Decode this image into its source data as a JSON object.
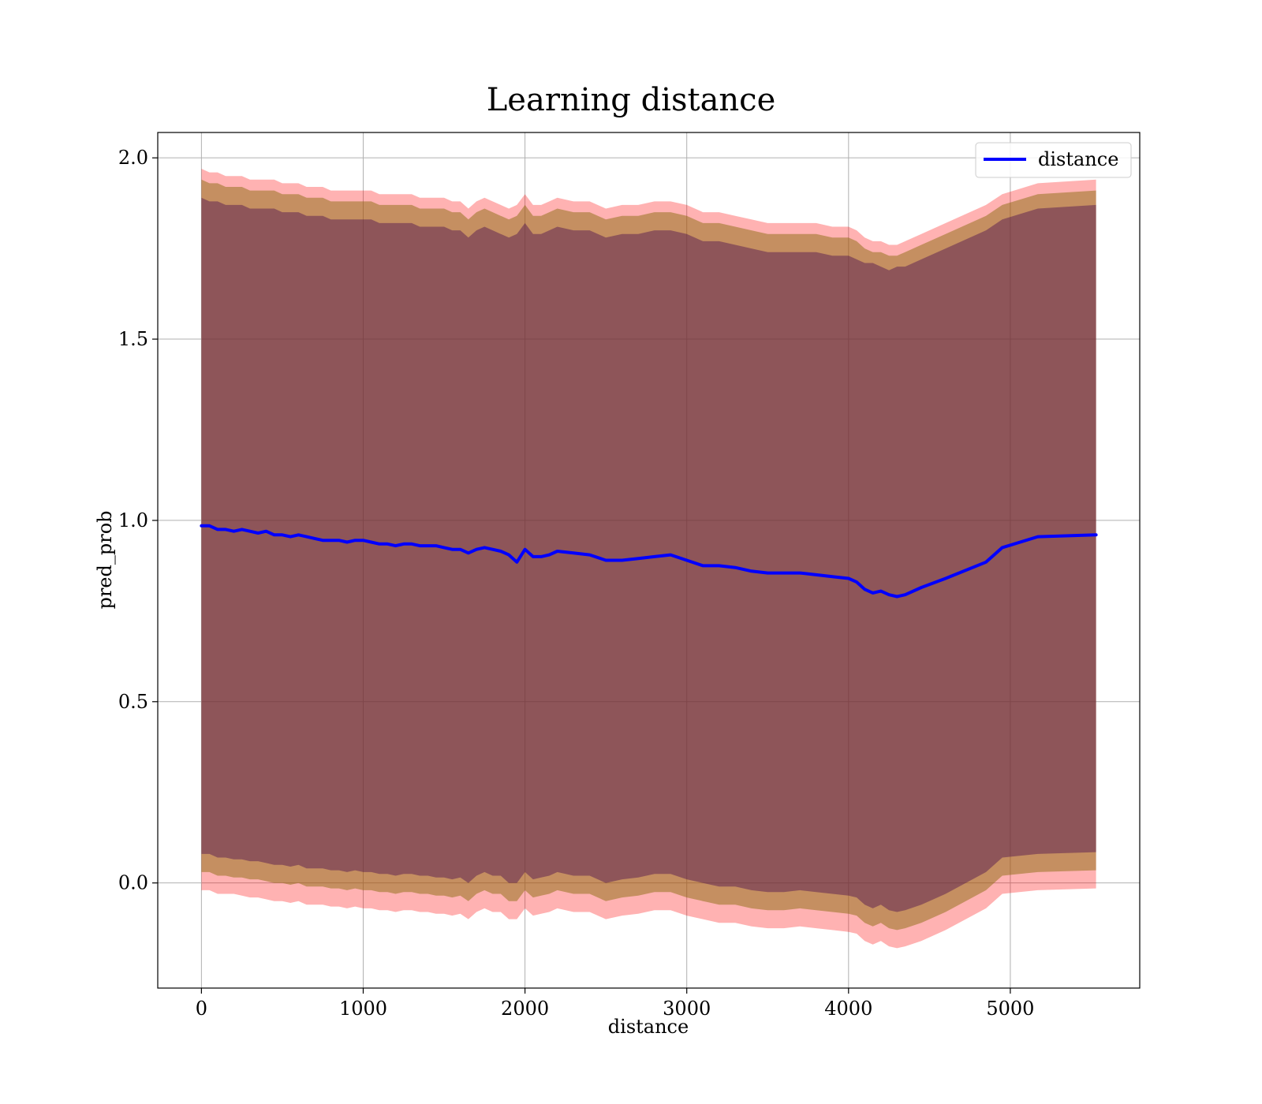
{
  "chart_data": {
    "type": "line",
    "title": "Learning distance",
    "xlabel": "distance",
    "ylabel": "pred_prob",
    "xlim": [
      -270,
      5800
    ],
    "ylim": [
      -0.29,
      2.07
    ],
    "xticks": [
      0,
      1000,
      2000,
      3000,
      4000,
      5000
    ],
    "xtick_labels": [
      "0",
      "1000",
      "2000",
      "3000",
      "4000",
      "5000"
    ],
    "yticks": [
      0.0,
      0.5,
      1.0,
      1.5,
      2.0
    ],
    "ytick_labels": [
      "0.0",
      "0.5",
      "1.0",
      "1.5",
      "2.0"
    ],
    "grid": true,
    "legend": {
      "placement": "top-right",
      "entries": [
        "distance"
      ]
    },
    "colors": {
      "line": "#0000ff",
      "outer_band": "#ff0000",
      "middle_band": "#8b6b10",
      "inner_band": "#4b0f4f",
      "grid": "#b0b0b0"
    },
    "series": [
      {
        "name": "distance",
        "x": [
          0,
          50,
          100,
          150,
          200,
          250,
          300,
          350,
          400,
          450,
          500,
          550,
          600,
          650,
          700,
          750,
          800,
          850,
          900,
          950,
          1000,
          1050,
          1100,
          1150,
          1200,
          1250,
          1300,
          1350,
          1400,
          1450,
          1500,
          1550,
          1600,
          1650,
          1700,
          1750,
          1800,
          1850,
          1900,
          1950,
          2000,
          2050,
          2100,
          2150,
          2200,
          2300,
          2400,
          2500,
          2600,
          2700,
          2800,
          2900,
          3000,
          3100,
          3200,
          3300,
          3400,
          3500,
          3600,
          3700,
          3800,
          3900,
          4000,
          4050,
          4100,
          4150,
          4200,
          4250,
          4300,
          4350,
          4450,
          4600,
          4850,
          4950,
          5170,
          5530
        ],
        "y": [
          0.985,
          0.985,
          0.975,
          0.975,
          0.97,
          0.975,
          0.97,
          0.965,
          0.97,
          0.96,
          0.96,
          0.955,
          0.96,
          0.955,
          0.95,
          0.945,
          0.945,
          0.945,
          0.94,
          0.945,
          0.945,
          0.94,
          0.935,
          0.935,
          0.93,
          0.935,
          0.935,
          0.93,
          0.93,
          0.93,
          0.925,
          0.92,
          0.92,
          0.91,
          0.92,
          0.925,
          0.92,
          0.915,
          0.905,
          0.885,
          0.92,
          0.9,
          0.9,
          0.905,
          0.915,
          0.91,
          0.905,
          0.89,
          0.89,
          0.895,
          0.9,
          0.905,
          0.89,
          0.875,
          0.875,
          0.87,
          0.86,
          0.855,
          0.855,
          0.855,
          0.85,
          0.845,
          0.84,
          0.83,
          0.81,
          0.8,
          0.805,
          0.795,
          0.79,
          0.795,
          0.815,
          0.84,
          0.885,
          0.925,
          0.955,
          0.96
        ],
        "band_outer": [
          [
            -0.02,
            1.97
          ],
          [
            -0.02,
            1.96
          ],
          [
            -0.03,
            1.96
          ],
          [
            -0.03,
            1.95
          ],
          [
            -0.03,
            1.95
          ],
          [
            -0.035,
            1.95
          ],
          [
            -0.04,
            1.94
          ],
          [
            -0.04,
            1.94
          ],
          [
            -0.045,
            1.94
          ],
          [
            -0.05,
            1.94
          ],
          [
            -0.05,
            1.93
          ],
          [
            -0.055,
            1.93
          ],
          [
            -0.05,
            1.93
          ],
          [
            -0.06,
            1.92
          ],
          [
            -0.06,
            1.92
          ],
          [
            -0.06,
            1.92
          ],
          [
            -0.065,
            1.91
          ],
          [
            -0.065,
            1.91
          ],
          [
            -0.07,
            1.91
          ],
          [
            -0.065,
            1.91
          ],
          [
            -0.07,
            1.91
          ],
          [
            -0.07,
            1.91
          ],
          [
            -0.075,
            1.9
          ],
          [
            -0.075,
            1.9
          ],
          [
            -0.08,
            1.9
          ],
          [
            -0.075,
            1.9
          ],
          [
            -0.075,
            1.9
          ],
          [
            -0.08,
            1.89
          ],
          [
            -0.08,
            1.89
          ],
          [
            -0.085,
            1.89
          ],
          [
            -0.085,
            1.89
          ],
          [
            -0.09,
            1.88
          ],
          [
            -0.085,
            1.88
          ],
          [
            -0.1,
            1.86
          ],
          [
            -0.08,
            1.88
          ],
          [
            -0.07,
            1.89
          ],
          [
            -0.08,
            1.88
          ],
          [
            -0.08,
            1.87
          ],
          [
            -0.1,
            1.86
          ],
          [
            -0.1,
            1.87
          ],
          [
            -0.07,
            1.9
          ],
          [
            -0.09,
            1.87
          ],
          [
            -0.085,
            1.87
          ],
          [
            -0.08,
            1.88
          ],
          [
            -0.07,
            1.89
          ],
          [
            -0.08,
            1.88
          ],
          [
            -0.08,
            1.88
          ],
          [
            -0.1,
            1.86
          ],
          [
            -0.09,
            1.87
          ],
          [
            -0.085,
            1.87
          ],
          [
            -0.075,
            1.88
          ],
          [
            -0.075,
            1.88
          ],
          [
            -0.09,
            1.87
          ],
          [
            -0.1,
            1.85
          ],
          [
            -0.11,
            1.85
          ],
          [
            -0.11,
            1.84
          ],
          [
            -0.12,
            1.83
          ],
          [
            -0.125,
            1.82
          ],
          [
            -0.125,
            1.82
          ],
          [
            -0.12,
            1.82
          ],
          [
            -0.125,
            1.82
          ],
          [
            -0.13,
            1.81
          ],
          [
            -0.135,
            1.81
          ],
          [
            -0.14,
            1.8
          ],
          [
            -0.16,
            1.78
          ],
          [
            -0.17,
            1.77
          ],
          [
            -0.16,
            1.77
          ],
          [
            -0.175,
            1.76
          ],
          [
            -0.18,
            1.76
          ],
          [
            -0.175,
            1.77
          ],
          [
            -0.16,
            1.79
          ],
          [
            -0.13,
            1.82
          ],
          [
            -0.07,
            1.87
          ],
          [
            -0.03,
            1.9
          ],
          [
            -0.02,
            1.93
          ],
          [
            -0.015,
            1.94
          ]
        ],
        "band_middle": [
          [
            0.03,
            1.94
          ],
          [
            0.03,
            1.93
          ],
          [
            0.02,
            1.93
          ],
          [
            0.02,
            1.92
          ],
          [
            0.015,
            1.92
          ],
          [
            0.015,
            1.92
          ],
          [
            0.01,
            1.91
          ],
          [
            0.01,
            1.91
          ],
          [
            0.005,
            1.91
          ],
          [
            0.0,
            1.91
          ],
          [
            0.0,
            1.9
          ],
          [
            -0.005,
            1.9
          ],
          [
            0.0,
            1.9
          ],
          [
            -0.01,
            1.89
          ],
          [
            -0.01,
            1.89
          ],
          [
            -0.01,
            1.89
          ],
          [
            -0.015,
            1.88
          ],
          [
            -0.015,
            1.88
          ],
          [
            -0.02,
            1.88
          ],
          [
            -0.015,
            1.88
          ],
          [
            -0.02,
            1.88
          ],
          [
            -0.02,
            1.88
          ],
          [
            -0.025,
            1.87
          ],
          [
            -0.025,
            1.87
          ],
          [
            -0.03,
            1.87
          ],
          [
            -0.025,
            1.87
          ],
          [
            -0.025,
            1.87
          ],
          [
            -0.03,
            1.86
          ],
          [
            -0.03,
            1.86
          ],
          [
            -0.035,
            1.86
          ],
          [
            -0.035,
            1.86
          ],
          [
            -0.04,
            1.85
          ],
          [
            -0.035,
            1.85
          ],
          [
            -0.05,
            1.83
          ],
          [
            -0.03,
            1.85
          ],
          [
            -0.02,
            1.86
          ],
          [
            -0.03,
            1.85
          ],
          [
            -0.03,
            1.84
          ],
          [
            -0.05,
            1.83
          ],
          [
            -0.05,
            1.84
          ],
          [
            -0.02,
            1.87
          ],
          [
            -0.04,
            1.84
          ],
          [
            -0.035,
            1.84
          ],
          [
            -0.03,
            1.85
          ],
          [
            -0.02,
            1.86
          ],
          [
            -0.03,
            1.85
          ],
          [
            -0.03,
            1.85
          ],
          [
            -0.05,
            1.83
          ],
          [
            -0.04,
            1.84
          ],
          [
            -0.035,
            1.84
          ],
          [
            -0.025,
            1.85
          ],
          [
            -0.025,
            1.85
          ],
          [
            -0.04,
            1.84
          ],
          [
            -0.05,
            1.82
          ],
          [
            -0.06,
            1.82
          ],
          [
            -0.06,
            1.81
          ],
          [
            -0.07,
            1.8
          ],
          [
            -0.075,
            1.79
          ],
          [
            -0.075,
            1.79
          ],
          [
            -0.07,
            1.79
          ],
          [
            -0.075,
            1.79
          ],
          [
            -0.08,
            1.78
          ],
          [
            -0.085,
            1.78
          ],
          [
            -0.09,
            1.77
          ],
          [
            -0.11,
            1.75
          ],
          [
            -0.12,
            1.74
          ],
          [
            -0.11,
            1.74
          ],
          [
            -0.125,
            1.73
          ],
          [
            -0.13,
            1.73
          ],
          [
            -0.125,
            1.74
          ],
          [
            -0.11,
            1.76
          ],
          [
            -0.08,
            1.79
          ],
          [
            -0.02,
            1.84
          ],
          [
            0.02,
            1.87
          ],
          [
            0.03,
            1.9
          ],
          [
            0.035,
            1.91
          ]
        ],
        "band_inner": [
          [
            0.08,
            1.89
          ],
          [
            0.08,
            1.88
          ],
          [
            0.07,
            1.88
          ],
          [
            0.07,
            1.87
          ],
          [
            0.065,
            1.87
          ],
          [
            0.065,
            1.87
          ],
          [
            0.06,
            1.86
          ],
          [
            0.06,
            1.86
          ],
          [
            0.055,
            1.86
          ],
          [
            0.05,
            1.86
          ],
          [
            0.05,
            1.85
          ],
          [
            0.045,
            1.85
          ],
          [
            0.05,
            1.85
          ],
          [
            0.04,
            1.84
          ],
          [
            0.04,
            1.84
          ],
          [
            0.04,
            1.84
          ],
          [
            0.035,
            1.83
          ],
          [
            0.035,
            1.83
          ],
          [
            0.03,
            1.83
          ],
          [
            0.035,
            1.83
          ],
          [
            0.03,
            1.83
          ],
          [
            0.03,
            1.83
          ],
          [
            0.025,
            1.82
          ],
          [
            0.025,
            1.82
          ],
          [
            0.02,
            1.82
          ],
          [
            0.025,
            1.82
          ],
          [
            0.025,
            1.82
          ],
          [
            0.02,
            1.81
          ],
          [
            0.02,
            1.81
          ],
          [
            0.015,
            1.81
          ],
          [
            0.015,
            1.81
          ],
          [
            0.01,
            1.8
          ],
          [
            0.015,
            1.8
          ],
          [
            0.0,
            1.78
          ],
          [
            0.02,
            1.8
          ],
          [
            0.03,
            1.81
          ],
          [
            0.02,
            1.8
          ],
          [
            0.02,
            1.79
          ],
          [
            0.0,
            1.78
          ],
          [
            0.0,
            1.79
          ],
          [
            0.03,
            1.82
          ],
          [
            0.01,
            1.79
          ],
          [
            0.015,
            1.79
          ],
          [
            0.02,
            1.8
          ],
          [
            0.03,
            1.81
          ],
          [
            0.02,
            1.8
          ],
          [
            0.02,
            1.8
          ],
          [
            0.0,
            1.78
          ],
          [
            0.01,
            1.79
          ],
          [
            0.015,
            1.79
          ],
          [
            0.025,
            1.8
          ],
          [
            0.025,
            1.8
          ],
          [
            0.01,
            1.79
          ],
          [
            0.0,
            1.77
          ],
          [
            -0.01,
            1.77
          ],
          [
            -0.01,
            1.76
          ],
          [
            -0.02,
            1.75
          ],
          [
            -0.025,
            1.74
          ],
          [
            -0.025,
            1.74
          ],
          [
            -0.02,
            1.74
          ],
          [
            -0.025,
            1.74
          ],
          [
            -0.03,
            1.73
          ],
          [
            -0.035,
            1.73
          ],
          [
            -0.04,
            1.72
          ],
          [
            -0.06,
            1.71
          ],
          [
            -0.07,
            1.71
          ],
          [
            -0.06,
            1.7
          ],
          [
            -0.075,
            1.69
          ],
          [
            -0.08,
            1.7
          ],
          [
            -0.075,
            1.7
          ],
          [
            -0.06,
            1.72
          ],
          [
            -0.03,
            1.75
          ],
          [
            0.03,
            1.8
          ],
          [
            0.07,
            1.83
          ],
          [
            0.08,
            1.86
          ],
          [
            0.085,
            1.87
          ]
        ]
      }
    ]
  }
}
